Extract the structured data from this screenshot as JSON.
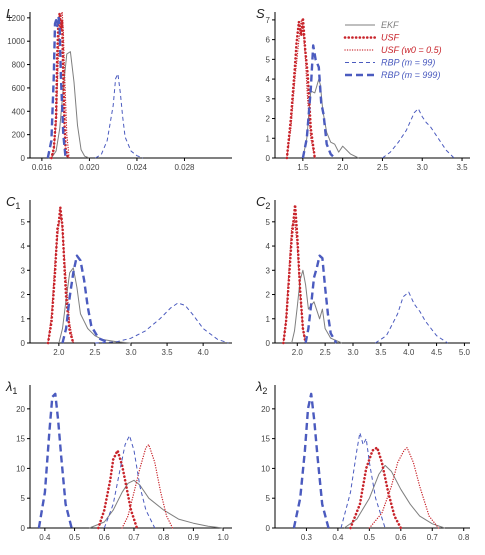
{
  "colors": {
    "axis": "#000000",
    "tick_label": "#444444",
    "EKF": "#7f7f7f",
    "USF": "#c8242b",
    "RBP": "#4b5bbf"
  },
  "legend": {
    "placement": "top-right of S panel",
    "entries": [
      {
        "series": "EKF",
        "label": "EKF",
        "style": "solid-thin"
      },
      {
        "series": "USF",
        "label": "USF",
        "style": "dotted-thick"
      },
      {
        "series": "USF_w05",
        "label": "USF (w0 = 0.5)",
        "style": "dotted-thin"
      },
      {
        "series": "RBP_99",
        "label": "RBP (m = 99)",
        "style": "dashed-thin"
      },
      {
        "series": "RBP_999",
        "label": "RBP (m = 999)",
        "style": "dashed-thick"
      }
    ]
  },
  "chart_data": [
    {
      "id": "L",
      "type": "line",
      "title": "L",
      "xlim": [
        0.015,
        0.032
      ],
      "ylim": [
        0,
        1250
      ],
      "xticks": [
        0.016,
        0.02,
        0.024,
        0.028
      ],
      "xtick_labels": [
        "0.016",
        "0.020",
        "0.024",
        "0.028"
      ],
      "yticks": [
        0,
        200,
        400,
        600,
        800,
        1000,
        1200
      ],
      "ytick_labels": [
        "0",
        "200",
        "400",
        "600",
        "800",
        "1000",
        "1200"
      ],
      "series": [
        {
          "name": "EKF",
          "x": [
            0.0168,
            0.0172,
            0.0175,
            0.0178,
            0.0181,
            0.0184,
            0.0187,
            0.019,
            0.0193,
            0.0196,
            0.02
          ],
          "y": [
            0,
            60,
            250,
            600,
            890,
            910,
            650,
            280,
            70,
            15,
            0
          ]
        },
        {
          "name": "USF",
          "x": [
            0.0168,
            0.017,
            0.0172,
            0.0173,
            0.0174,
            0.0175,
            0.0176,
            0.0177,
            0.0178,
            0.0179,
            0.018,
            0.0182
          ],
          "y": [
            0,
            80,
            350,
            900,
            1180,
            1240,
            1100,
            1180,
            700,
            280,
            80,
            0
          ]
        },
        {
          "name": "USF_w05",
          "x": [
            0.0168,
            0.017,
            0.0172,
            0.0174,
            0.0175,
            0.0176,
            0.0177,
            0.0178,
            0.0179,
            0.0181,
            0.0183
          ],
          "y": [
            0,
            60,
            300,
            900,
            1150,
            1200,
            1250,
            1100,
            750,
            200,
            0
          ]
        },
        {
          "name": "RBP_99",
          "x": [
            0.0205,
            0.021,
            0.0215,
            0.022,
            0.0222,
            0.0224,
            0.0226,
            0.0228,
            0.023,
            0.0235,
            0.024,
            0.0245
          ],
          "y": [
            0,
            30,
            150,
            450,
            680,
            720,
            560,
            350,
            180,
            60,
            20,
            0
          ]
        },
        {
          "name": "RBP_999",
          "x": [
            0.0165,
            0.0168,
            0.017,
            0.0171,
            0.0172,
            0.0173,
            0.0174,
            0.0175,
            0.0176,
            0.0178,
            0.018
          ],
          "y": [
            0,
            150,
            700,
            1150,
            1180,
            1130,
            1210,
            1100,
            700,
            200,
            0
          ]
        }
      ]
    },
    {
      "id": "S",
      "type": "line",
      "title": "S",
      "xlim": [
        1.15,
        3.6
      ],
      "ylim": [
        0,
        7.4
      ],
      "xticks": [
        1.5,
        2.0,
        2.5,
        3.0,
        3.5
      ],
      "xtick_labels": [
        "1.5",
        "2.0",
        "2.5",
        "3.0",
        "3.5"
      ],
      "yticks": [
        0,
        1,
        2,
        3,
        4,
        5,
        6,
        7
      ],
      "ytick_labels": [
        "0",
        "1",
        "2",
        "3",
        "4",
        "5",
        "6",
        "7"
      ],
      "series": [
        {
          "name": "EKF",
          "x": [
            1.5,
            1.55,
            1.6,
            1.65,
            1.7,
            1.72,
            1.75,
            1.8,
            1.85,
            1.9,
            1.95,
            2.0,
            2.1,
            2.2
          ],
          "y": [
            0,
            1.0,
            3.4,
            3.3,
            4.0,
            3.7,
            2.4,
            1.3,
            0.8,
            0.7,
            0.3,
            0.6,
            0.2,
            0
          ]
        },
        {
          "name": "USF",
          "x": [
            1.3,
            1.35,
            1.4,
            1.42,
            1.45,
            1.48,
            1.5,
            1.53,
            1.56,
            1.6,
            1.65
          ],
          "y": [
            0,
            2.0,
            4.6,
            5.8,
            6.9,
            6.2,
            7.1,
            5.5,
            4.3,
            1.5,
            0
          ]
        },
        {
          "name": "USF_w05",
          "x": [
            1.3,
            1.35,
            1.4,
            1.45,
            1.48,
            1.5,
            1.53,
            1.56,
            1.6,
            1.65
          ],
          "y": [
            0,
            1.5,
            4.0,
            6.0,
            7.0,
            6.6,
            5.2,
            3.0,
            1.0,
            0
          ]
        },
        {
          "name": "RBP_99",
          "x": [
            2.5,
            2.6,
            2.7,
            2.8,
            2.9,
            2.95,
            3.0,
            3.05,
            3.1,
            3.2,
            3.3,
            3.4
          ],
          "y": [
            0,
            0.3,
            0.8,
            1.4,
            2.3,
            2.5,
            2.1,
            1.8,
            1.6,
            1.0,
            0.4,
            0
          ]
        },
        {
          "name": "RBP_999",
          "x": [
            1.5,
            1.55,
            1.6,
            1.63,
            1.66,
            1.7,
            1.73,
            1.76,
            1.8,
            1.85,
            1.9
          ],
          "y": [
            0,
            1.0,
            3.5,
            5.7,
            5.0,
            4.6,
            2.8,
            2.2,
            0.7,
            0.2,
            0
          ]
        }
      ]
    },
    {
      "id": "C1",
      "type": "line",
      "title": "C1",
      "xlim": [
        1.6,
        4.4
      ],
      "ylim": [
        0,
        5.9
      ],
      "xticks": [
        2.0,
        2.5,
        3.0,
        3.5,
        4.0
      ],
      "xtick_labels": [
        "2.0",
        "2.5",
        "3.0",
        "3.5",
        "4.0"
      ],
      "yticks": [
        0,
        1,
        2,
        3,
        4,
        5
      ],
      "ytick_labels": [
        "0",
        "1",
        "2",
        "3",
        "4",
        "5"
      ],
      "series": [
        {
          "name": "EKF",
          "x": [
            2.0,
            2.05,
            2.1,
            2.15,
            2.2,
            2.25,
            2.3,
            2.35,
            2.4,
            2.5,
            2.6,
            2.8,
            3.0
          ],
          "y": [
            0,
            0.6,
            1.8,
            2.9,
            3.1,
            2.3,
            1.2,
            0.9,
            0.6,
            0.3,
            0.15,
            0.05,
            0
          ]
        },
        {
          "name": "USF",
          "x": [
            1.85,
            1.9,
            1.95,
            1.98,
            2.0,
            2.02,
            2.05,
            2.08,
            2.1,
            2.15,
            2.2
          ],
          "y": [
            0,
            0.9,
            3.0,
            4.7,
            5.0,
            5.6,
            4.8,
            3.0,
            1.9,
            0.5,
            0
          ]
        },
        {
          "name": "USF_w05",
          "x": [
            1.85,
            1.9,
            1.95,
            2.0,
            2.03,
            2.06,
            2.1,
            2.15,
            2.2
          ],
          "y": [
            0,
            1.2,
            3.5,
            4.9,
            5.3,
            4.2,
            2.6,
            0.8,
            0
          ]
        },
        {
          "name": "RBP_99",
          "x": [
            2.5,
            2.8,
            3.0,
            3.2,
            3.4,
            3.55,
            3.65,
            3.75,
            3.85,
            4.0,
            4.2,
            4.35
          ],
          "y": [
            0,
            0.05,
            0.2,
            0.5,
            1.0,
            1.45,
            1.65,
            1.55,
            1.2,
            0.6,
            0.15,
            0
          ]
        },
        {
          "name": "RBP_999",
          "x": [
            2.05,
            2.1,
            2.15,
            2.2,
            2.25,
            2.3,
            2.35,
            2.4,
            2.45,
            2.55,
            2.7
          ],
          "y": [
            0,
            0.6,
            1.9,
            2.9,
            3.6,
            3.4,
            2.6,
            1.5,
            0.7,
            0.2,
            0
          ]
        }
      ]
    },
    {
      "id": "C2",
      "type": "line",
      "title": "C2",
      "xlim": [
        1.6,
        5.1
      ],
      "ylim": [
        0,
        5.9
      ],
      "xticks": [
        2.0,
        2.5,
        3.0,
        3.5,
        4.0,
        4.5,
        5.0
      ],
      "xtick_labels": [
        "2.0",
        "2.5",
        "3.0",
        "3.5",
        "4.0",
        "4.5",
        "5.0"
      ],
      "yticks": [
        0,
        1,
        2,
        3,
        4,
        5
      ],
      "ytick_labels": [
        "0",
        "1",
        "2",
        "3",
        "4",
        "5"
      ],
      "series": [
        {
          "name": "EKF",
          "x": [
            1.9,
            1.95,
            2.0,
            2.05,
            2.1,
            2.15,
            2.2,
            2.3,
            2.4,
            2.45,
            2.5,
            2.6,
            2.8
          ],
          "y": [
            0,
            0.5,
            1.5,
            2.6,
            3.0,
            2.4,
            1.4,
            1.7,
            1.0,
            1.4,
            0.6,
            0.2,
            0
          ]
        },
        {
          "name": "USF",
          "x": [
            1.75,
            1.8,
            1.85,
            1.9,
            1.93,
            1.96,
            2.0,
            2.05,
            2.1,
            2.15
          ],
          "y": [
            0,
            0.9,
            2.6,
            4.3,
            5.0,
            5.7,
            4.4,
            2.2,
            0.6,
            0
          ]
        },
        {
          "name": "USF_w05",
          "x": [
            1.75,
            1.8,
            1.85,
            1.9,
            1.95,
            2.0,
            2.05,
            2.1,
            2.15
          ],
          "y": [
            0,
            1.0,
            3.0,
            4.8,
            5.1,
            4.0,
            2.0,
            0.6,
            0
          ]
        },
        {
          "name": "RBP_99",
          "x": [
            3.4,
            3.6,
            3.8,
            3.9,
            4.0,
            4.1,
            4.2,
            4.3,
            4.5,
            4.7
          ],
          "y": [
            0,
            0.3,
            1.2,
            1.9,
            2.1,
            1.6,
            1.3,
            0.9,
            0.3,
            0
          ]
        },
        {
          "name": "RBP_999",
          "x": [
            2.15,
            2.2,
            2.25,
            2.3,
            2.35,
            2.4,
            2.45,
            2.5,
            2.55,
            2.6,
            2.7
          ],
          "y": [
            0,
            0.6,
            1.6,
            2.7,
            3.1,
            3.6,
            3.5,
            2.3,
            1.2,
            0.4,
            0
          ]
        }
      ]
    },
    {
      "id": "lambda1",
      "type": "line",
      "title": "λ1",
      "xlim": [
        0.35,
        1.03
      ],
      "ylim": [
        0,
        24
      ],
      "xticks": [
        0.4,
        0.5,
        0.6,
        0.7,
        0.8,
        0.9,
        1.0
      ],
      "xtick_labels": [
        "0.4",
        "0.5",
        "0.6",
        "0.7",
        "0.8",
        "0.9",
        "1.0"
      ],
      "yticks": [
        0,
        5,
        10,
        15,
        20
      ],
      "ytick_labels": [
        "0",
        "5",
        "10",
        "15",
        "20"
      ],
      "series": [
        {
          "name": "EKF",
          "x": [
            0.55,
            0.6,
            0.63,
            0.66,
            0.68,
            0.7,
            0.72,
            0.75,
            0.8,
            0.85,
            0.9,
            0.95,
            1.0
          ],
          "y": [
            0,
            1.0,
            3.0,
            6.0,
            7.5,
            8.0,
            7.2,
            5.0,
            3.0,
            1.5,
            0.8,
            0.3,
            0
          ]
        },
        {
          "name": "USF",
          "x": [
            0.58,
            0.6,
            0.62,
            0.63,
            0.645,
            0.66,
            0.67,
            0.69,
            0.71
          ],
          "y": [
            0,
            3.0,
            8.0,
            11.5,
            13.0,
            10.5,
            8.0,
            3.0,
            0
          ]
        },
        {
          "name": "USF_w05",
          "x": [
            0.66,
            0.68,
            0.7,
            0.72,
            0.74,
            0.75,
            0.77,
            0.79,
            0.81,
            0.83
          ],
          "y": [
            0,
            2.0,
            6.0,
            10.0,
            13.5,
            14.0,
            11.0,
            6.0,
            2.0,
            0
          ]
        },
        {
          "name": "RBP_99",
          "x": [
            0.6,
            0.63,
            0.65,
            0.67,
            0.685,
            0.7,
            0.72,
            0.74,
            0.77
          ],
          "y": [
            0,
            4.0,
            9.0,
            14.0,
            15.5,
            13.0,
            7.0,
            3.0,
            0
          ]
        },
        {
          "name": "RBP_999",
          "x": [
            0.38,
            0.4,
            0.415,
            0.425,
            0.435,
            0.445,
            0.455,
            0.47,
            0.49
          ],
          "y": [
            0,
            6.0,
            16.0,
            22.0,
            22.5,
            18.0,
            12.0,
            4.0,
            0
          ]
        }
      ]
    },
    {
      "id": "lambda2",
      "type": "line",
      "title": "λ2",
      "xlim": [
        0.2,
        0.82
      ],
      "ylim": [
        0,
        24
      ],
      "xticks": [
        0.3,
        0.4,
        0.5,
        0.6,
        0.7,
        0.8
      ],
      "xtick_labels": [
        "0.3",
        "0.4",
        "0.5",
        "0.6",
        "0.7",
        "0.8"
      ],
      "yticks": [
        0,
        5,
        10,
        15,
        20
      ],
      "ytick_labels": [
        "0",
        "5",
        "10",
        "15",
        "20"
      ],
      "series": [
        {
          "name": "EKF",
          "x": [
            0.42,
            0.46,
            0.5,
            0.53,
            0.55,
            0.57,
            0.6,
            0.63,
            0.66,
            0.7,
            0.74
          ],
          "y": [
            0,
            1.5,
            5.0,
            9.0,
            10.5,
            9.5,
            6.5,
            4.0,
            2.0,
            0.7,
            0
          ]
        },
        {
          "name": "USF",
          "x": [
            0.44,
            0.47,
            0.49,
            0.51,
            0.525,
            0.54,
            0.56,
            0.58,
            0.6
          ],
          "y": [
            0,
            4.0,
            10.0,
            13.0,
            13.5,
            11.0,
            6.0,
            2.0,
            0
          ]
        },
        {
          "name": "USF_w05",
          "x": [
            0.5,
            0.54,
            0.57,
            0.59,
            0.61,
            0.62,
            0.64,
            0.66,
            0.69,
            0.72
          ],
          "y": [
            0,
            2.5,
            7.0,
            11.0,
            13.0,
            13.5,
            11.0,
            7.0,
            2.0,
            0
          ]
        },
        {
          "name": "RBP_99",
          "x": [
            0.41,
            0.44,
            0.46,
            0.47,
            0.48,
            0.49,
            0.5,
            0.52,
            0.55
          ],
          "y": [
            0,
            6.0,
            13.0,
            16.0,
            14.0,
            15.0,
            11.0,
            5.0,
            0
          ]
        },
        {
          "name": "RBP_999",
          "x": [
            0.26,
            0.28,
            0.295,
            0.305,
            0.315,
            0.325,
            0.335,
            0.35,
            0.37
          ],
          "y": [
            0,
            5.0,
            13.0,
            20.0,
            22.5,
            18.0,
            12.0,
            4.0,
            0
          ]
        }
      ]
    }
  ]
}
